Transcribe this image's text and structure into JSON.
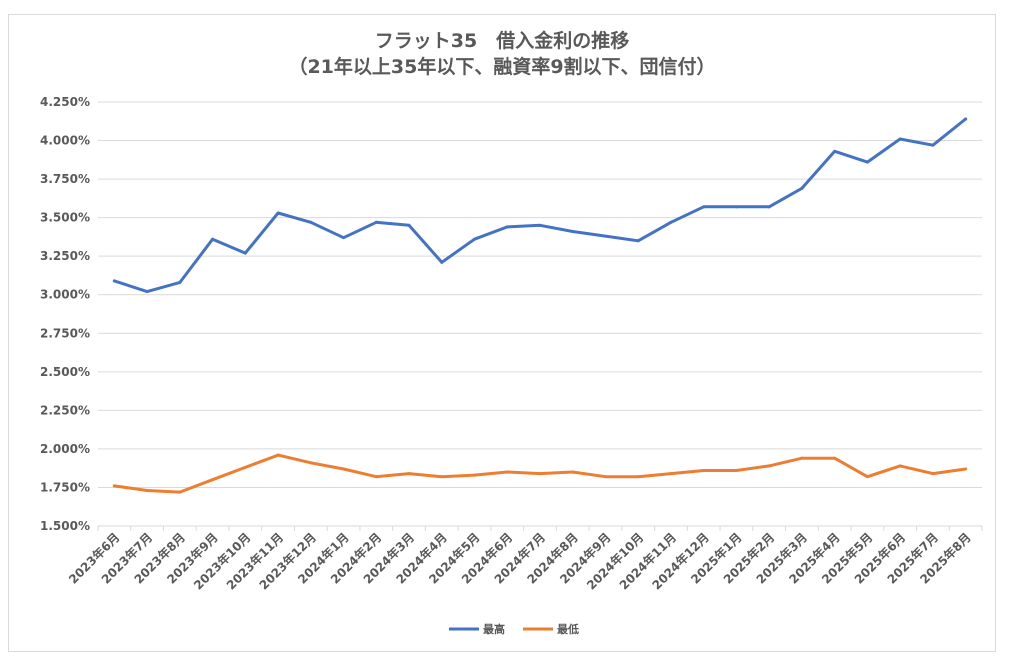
{
  "chart_data": {
    "type": "line",
    "title": "フラット35　借入金利の推移",
    "subtitle": "（21年以上35年以下、融資率9割以下、団信付）",
    "categories": [
      "2023年6月",
      "2023年7月",
      "2023年8月",
      "2023年9月",
      "2023年10月",
      "2023年11月",
      "2023年12月",
      "2024年1月",
      "2024年2月",
      "2024年3月",
      "2024年4月",
      "2024年5月",
      "2024年6月",
      "2024年7月",
      "2024年8月",
      "2024年9月",
      "2024年10月",
      "2024年11月",
      "2024年12月",
      "2025年1月",
      "2025年2月",
      "2025年3月",
      "2025年4月",
      "2025年5月",
      "2025年6月",
      "2025年7月",
      "2025年8月"
    ],
    "series": [
      {
        "name": "最高",
        "color": "#4472c4",
        "values": [
          3.09,
          3.02,
          3.08,
          3.36,
          3.27,
          3.53,
          3.47,
          3.37,
          3.47,
          3.45,
          3.21,
          3.36,
          3.44,
          3.45,
          3.41,
          3.38,
          3.35,
          3.47,
          3.57,
          3.57,
          3.57,
          3.69,
          3.93,
          3.86,
          4.01,
          3.97,
          4.14
        ]
      },
      {
        "name": "最低",
        "color": "#ed7d31",
        "values": [
          1.76,
          1.73,
          1.72,
          1.8,
          1.88,
          1.96,
          1.91,
          1.87,
          1.82,
          1.84,
          1.82,
          1.83,
          1.85,
          1.84,
          1.85,
          1.82,
          1.82,
          1.84,
          1.86,
          1.86,
          1.89,
          1.94,
          1.94,
          1.82,
          1.89,
          1.84,
          1.87
        ]
      }
    ],
    "yticks": [
      "1.500%",
      "1.750%",
      "2.000%",
      "2.250%",
      "2.500%",
      "2.750%",
      "3.000%",
      "3.250%",
      "3.500%",
      "3.750%",
      "4.000%",
      "4.250%"
    ],
    "ylim": [
      1.5,
      4.25
    ],
    "grid": true,
    "legend_position": "bottom"
  }
}
